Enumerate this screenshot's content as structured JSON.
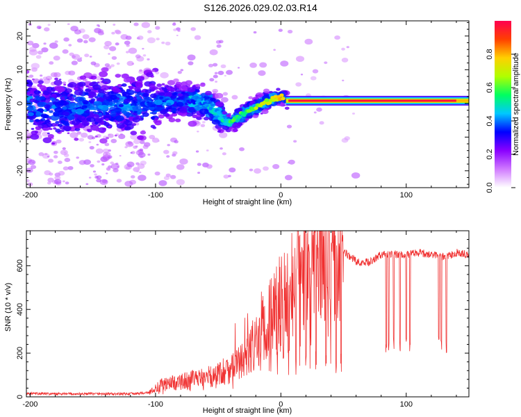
{
  "title": "S126.2026.029.02.03.R14",
  "chart_data": [
    {
      "type": "heatmap",
      "name": "spectrogram",
      "title": "S126.2026.029.02.03.R14",
      "xlabel": "Height of straight line (km)",
      "ylabel": "Frequency (Hz)",
      "xlim": [
        -203,
        150
      ],
      "ylim": [
        -25,
        24.5
      ],
      "xticks": [
        -200,
        -100,
        0,
        100
      ],
      "yticks": [
        20,
        10,
        0,
        -10,
        -20
      ],
      "colorbar": {
        "label": "Normalized spectral amplitude",
        "range": [
          0.0,
          1.0
        ],
        "ticks": [
          "0.0",
          "0.2",
          "0.4",
          "0.6",
          "0.8"
        ],
        "colors": [
          "#ffffff",
          "#d07aff",
          "#8a00ff",
          "#0000ff",
          "#00c8ff",
          "#00ff60",
          "#b0ff00",
          "#ffd000",
          "#ff4000",
          "#ff0050"
        ]
      },
      "ridge": [
        {
          "x": -200,
          "y": -2
        },
        {
          "x": -150,
          "y": -1
        },
        {
          "x": -100,
          "y": 0
        },
        {
          "x": -70,
          "y": 1
        },
        {
          "x": -55,
          "y": -1
        },
        {
          "x": -48,
          "y": -4
        },
        {
          "x": -40,
          "y": -6
        },
        {
          "x": -30,
          "y": -3
        },
        {
          "x": -15,
          "y": 0
        },
        {
          "x": 0,
          "y": 2
        },
        {
          "x": 5,
          "y": 1
        },
        {
          "x": 150,
          "y": 0.8
        }
      ]
    },
    {
      "type": "line",
      "name": "snr",
      "xlabel": "Height of straight line (km)",
      "ylabel": "SNR (10 * v/v)",
      "xlim": [
        -203,
        150
      ],
      "ylim": [
        0,
        760
      ],
      "xticks": [
        -200,
        -100,
        0,
        100
      ],
      "yticks": [
        0,
        200,
        400,
        600
      ],
      "color": "#f03030",
      "series": [
        {
          "name": "SNR",
          "x": [
            -203,
            -190,
            -170,
            -150,
            -130,
            -115,
            -105,
            -95,
            -85,
            -75,
            -65,
            -55,
            -45,
            -38,
            -32,
            -25,
            -20,
            -15,
            -10,
            -5,
            0,
            5,
            10,
            15,
            20,
            25,
            30,
            35,
            40,
            50,
            60,
            70,
            80,
            90,
            100,
            110,
            120,
            130,
            140,
            150
          ],
          "y": [
            15,
            14,
            13,
            14,
            13,
            15,
            20,
            55,
            65,
            75,
            85,
            95,
            120,
            140,
            160,
            210,
            260,
            300,
            350,
            400,
            440,
            470,
            540,
            580,
            620,
            640,
            650,
            655,
            660,
            665,
            620,
            615,
            650,
            655,
            650,
            660,
            650,
            640,
            660,
            650
          ]
        }
      ]
    }
  ]
}
